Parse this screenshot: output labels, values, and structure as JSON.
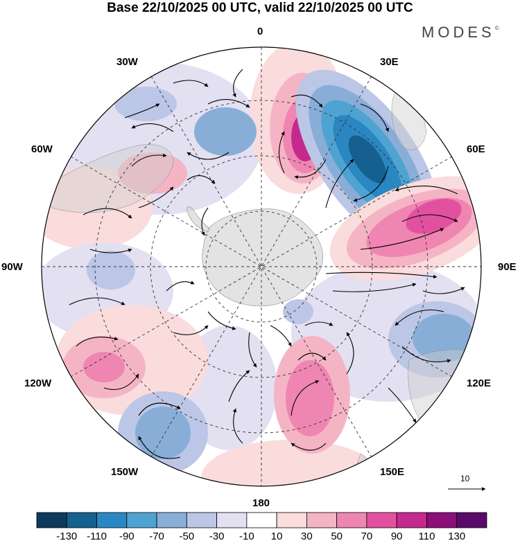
{
  "header": {
    "title": "Base 22/10/2025 00 UTC, valid 22/10/2025 00 UTC",
    "brand": "MODES",
    "brand_mark": "©"
  },
  "map": {
    "projection": "south polar stereographic",
    "longitude_labels": {
      "lon_0": "0",
      "lon_30e": "30E",
      "lon_60e": "60E",
      "lon_90e": "90E",
      "lon_120e": "120E",
      "lon_150e": "150E",
      "lon_180": "180",
      "lon_150w": "150W",
      "lon_120w": "120W",
      "lon_90w": "90W",
      "lon_60w": "60W",
      "lon_30w": "30W"
    },
    "vector_reference": {
      "value": "10",
      "icon": "arrow-right-icon"
    }
  },
  "colorbar": {
    "colors": [
      "#0d3a5c",
      "#15608f",
      "#2a87c2",
      "#4ea3d1",
      "#88aed8",
      "#bcc6e6",
      "#e2e0f1",
      "#ffffff",
      "#fadcdc",
      "#f5b4c4",
      "#ef86b2",
      "#e2519f",
      "#c42a8e",
      "#8c0e78",
      "#5a0a6b"
    ],
    "tick_labels": [
      "-130",
      "-110",
      "-90",
      "-70",
      "-50",
      "-30",
      "-10",
      "10",
      "30",
      "50",
      "70",
      "90",
      "110",
      "130"
    ]
  },
  "anomaly_centers": [
    {
      "sign": "positive",
      "lon": 8,
      "lat_colat": 25,
      "value": 100
    },
    {
      "sign": "negative",
      "lon": 38,
      "lat_colat": 22,
      "value": -110
    },
    {
      "sign": "positive",
      "lon": 75,
      "lat_colat": 27,
      "value": 90
    },
    {
      "sign": "negative",
      "lon": 118,
      "lat_colat": 35,
      "value": -60
    },
    {
      "sign": "positive",
      "lon": 165,
      "lat_colat": 20,
      "value": 80
    },
    {
      "sign": "negative",
      "lon": -150,
      "lat_colat": 34,
      "value": -60
    },
    {
      "sign": "positive",
      "lon": -115,
      "lat_colat": 33,
      "value": 60
    }
  ]
}
